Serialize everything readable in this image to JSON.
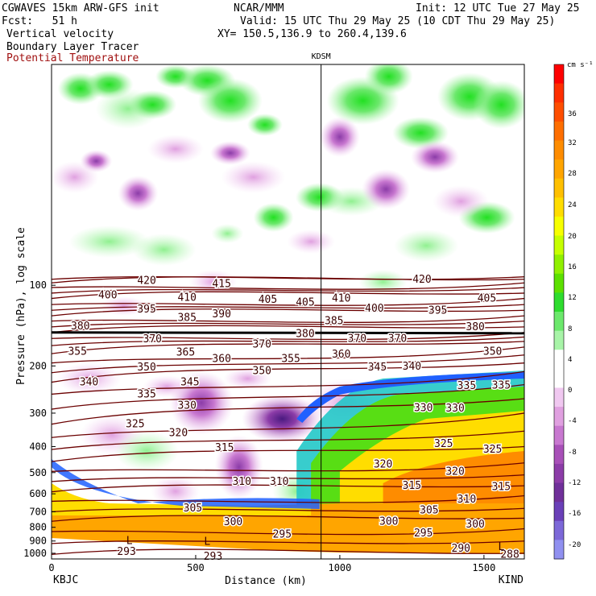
{
  "header": {
    "model": "CGWAVES 15km ARW-GFS init",
    "org": "NCAR/MMM",
    "init": "Init: 12 UTC Tue 27 May 25",
    "fcst": "Fcst:   51 h",
    "valid": "Valid: 15 UTC Thu 29 May 25 (10 CDT Thu 29 May 25)",
    "field1": "Vertical velocity",
    "field2": "Boundary Layer Tracer",
    "field3": "Potential Temperature",
    "xy": "XY= 150.5,136.9 to 260.4,139.6"
  },
  "colors": {
    "theta": "#6b0000",
    "field3_text": "#a01010"
  },
  "chart_data": {
    "type": "heatmap",
    "title": "Vertical velocity / Boundary Layer Tracer / Potential Temperature cross-section",
    "xlabel": "Distance (km)",
    "ylabel": "Pressure (hPa), log scale",
    "xlim": [
      0,
      1640
    ],
    "ylim": [
      1050,
      15
    ],
    "x_ticks": [
      0,
      500,
      1000,
      1500
    ],
    "y_ticks": [
      100,
      200,
      300,
      400,
      500,
      600,
      700,
      800,
      900,
      1000
    ],
    "left_station": "KBJC",
    "right_station": "KIND",
    "marker_station": {
      "name": "KDSM",
      "x": 935
    },
    "colorbar": {
      "unit": "cm s⁻¹",
      "tick_labels": [
        "36",
        "32",
        "28",
        "24",
        "20",
        "16",
        "12",
        "8",
        "4",
        "0",
        "-4",
        "-8",
        "-12",
        "-16",
        "-20"
      ],
      "colors": [
        "#fe0000",
        "#fe2e00",
        "#fe4e00",
        "#fe6e00",
        "#fe8c00",
        "#ffa500",
        "#ffc000",
        "#ffdd00",
        "#f7ff00",
        "#c6ff00",
        "#90f000",
        "#5ce000",
        "#2edc2e",
        "#6ce86c",
        "#a8f4a8",
        "#ffffff",
        "#ffffff",
        "#f0c8f0",
        "#e0a0e0",
        "#c878d0",
        "#a850b8",
        "#8c3ca8",
        "#70309a",
        "#6a40b8",
        "#7c68d8",
        "#9090f0"
      ]
    },
    "theta_labels": [
      {
        "value": "420",
        "x": 330,
        "p": 96
      },
      {
        "value": "415",
        "x": 590,
        "p": 99
      },
      {
        "value": "420",
        "x": 1285,
        "p": 95
      },
      {
        "value": "400",
        "x": 195,
        "p": 109
      },
      {
        "value": "410",
        "x": 470,
        "p": 111
      },
      {
        "value": "405",
        "x": 750,
        "p": 113
      },
      {
        "value": "405",
        "x": 880,
        "p": 116
      },
      {
        "value": "410",
        "x": 1005,
        "p": 112
      },
      {
        "value": "405",
        "x": 1510,
        "p": 112
      },
      {
        "value": "395",
        "x": 330,
        "p": 123
      },
      {
        "value": "385",
        "x": 470,
        "p": 132
      },
      {
        "value": "390",
        "x": 590,
        "p": 128
      },
      {
        "value": "400",
        "x": 1120,
        "p": 122
      },
      {
        "value": "395",
        "x": 1340,
        "p": 124
      },
      {
        "value": "380",
        "x": 100,
        "p": 142
      },
      {
        "value": "385",
        "x": 980,
        "p": 136
      },
      {
        "value": "380",
        "x": 1470,
        "p": 143
      },
      {
        "value": "370",
        "x": 350,
        "p": 159
      },
      {
        "value": "370",
        "x": 730,
        "p": 166
      },
      {
        "value": "380",
        "x": 880,
        "p": 152
      },
      {
        "value": "370",
        "x": 1060,
        "p": 158
      },
      {
        "value": "370",
        "x": 1200,
        "p": 158
      },
      {
        "value": "355",
        "x": 90,
        "p": 177
      },
      {
        "value": "365",
        "x": 465,
        "p": 178
      },
      {
        "value": "360",
        "x": 590,
        "p": 188
      },
      {
        "value": "355",
        "x": 830,
        "p": 188
      },
      {
        "value": "360",
        "x": 1005,
        "p": 181
      },
      {
        "value": "350",
        "x": 1530,
        "p": 177
      },
      {
        "value": "350",
        "x": 330,
        "p": 202
      },
      {
        "value": "350",
        "x": 730,
        "p": 209
      },
      {
        "value": "345",
        "x": 1130,
        "p": 202
      },
      {
        "value": "340",
        "x": 1250,
        "p": 201
      },
      {
        "value": "340",
        "x": 130,
        "p": 230
      },
      {
        "value": "345",
        "x": 480,
        "p": 230
      },
      {
        "value": "335",
        "x": 330,
        "p": 255
      },
      {
        "value": "335",
        "x": 1440,
        "p": 237
      },
      {
        "value": "335",
        "x": 1560,
        "p": 236
      },
      {
        "value": "330",
        "x": 470,
        "p": 281
      },
      {
        "value": "330",
        "x": 1290,
        "p": 287
      },
      {
        "value": "330",
        "x": 1400,
        "p": 288
      },
      {
        "value": "325",
        "x": 290,
        "p": 329
      },
      {
        "value": "320",
        "x": 440,
        "p": 356
      },
      {
        "value": "325",
        "x": 1360,
        "p": 390
      },
      {
        "value": "325",
        "x": 1530,
        "p": 410
      },
      {
        "value": "315",
        "x": 600,
        "p": 404
      },
      {
        "value": "320",
        "x": 1150,
        "p": 465
      },
      {
        "value": "320",
        "x": 1400,
        "p": 495
      },
      {
        "value": "310",
        "x": 660,
        "p": 540
      },
      {
        "value": "310",
        "x": 790,
        "p": 540
      },
      {
        "value": "315",
        "x": 1250,
        "p": 560
      },
      {
        "value": "315",
        "x": 1560,
        "p": 565
      },
      {
        "value": "310",
        "x": 1440,
        "p": 630
      },
      {
        "value": "305",
        "x": 490,
        "p": 680
      },
      {
        "value": "305",
        "x": 1310,
        "p": 690
      },
      {
        "value": "300",
        "x": 630,
        "p": 765
      },
      {
        "value": "300",
        "x": 1170,
        "p": 760
      },
      {
        "value": "300",
        "x": 1470,
        "p": 780
      },
      {
        "value": "295",
        "x": 800,
        "p": 850
      },
      {
        "value": "295",
        "x": 1290,
        "p": 840
      },
      {
        "value": "293",
        "x": 260,
        "p": 985
      },
      {
        "value": "293",
        "x": 560,
        "p": 1030
      },
      {
        "value": "290",
        "x": 1420,
        "p": 960
      },
      {
        "value": "288",
        "x": 1590,
        "p": 1010
      }
    ],
    "low_markers": [
      {
        "text": "L",
        "x": 270,
        "p": 900
      },
      {
        "text": "L",
        "x": 540,
        "p": 905
      },
      {
        "text": "L",
        "x": 1560,
        "p": 945
      }
    ],
    "theta_lines_p_left": [
      1010,
      920,
      830,
      760,
      700,
      640,
      590,
      540,
      495,
      455,
      410,
      370,
      330,
      290,
      255,
      230,
      212,
      195,
      180,
      168,
      158,
      150,
      143,
      136,
      130,
      124,
      118,
      112,
      107,
      102,
      98,
      95
    ],
    "theta_lines_p_right": [
      1000,
      900,
      810,
      740,
      680,
      610,
      560,
      510,
      460,
      400,
      350,
      300,
      265,
      235,
      210,
      195,
      182,
      170,
      162,
      156,
      150,
      143,
      136,
      130,
      124,
      118,
      112,
      107,
      102,
      98,
      95,
      93
    ]
  }
}
